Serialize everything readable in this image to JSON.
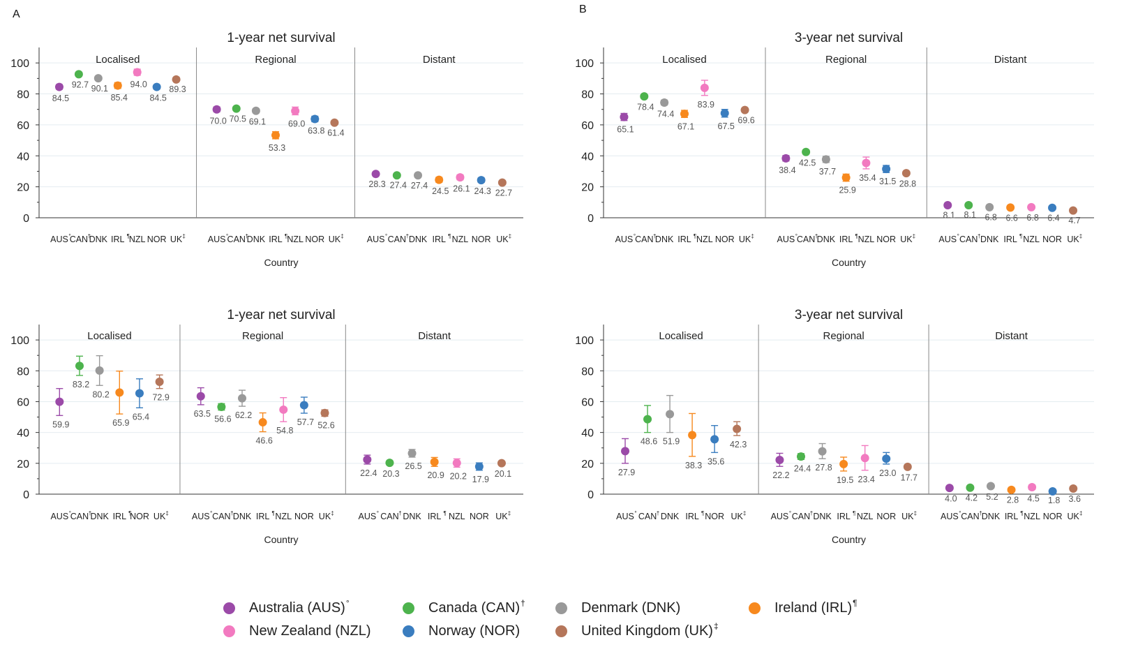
{
  "panels": [
    {
      "label": "A"
    },
    {
      "label": "B"
    }
  ],
  "countries": [
    {
      "code": "AUS",
      "mark": "°",
      "name": "Australia (AUS)",
      "color": "#9b4aa8"
    },
    {
      "code": "CAN",
      "mark": "†",
      "name": "Canada (CAN)",
      "color": "#4db34d"
    },
    {
      "code": "DNK",
      "mark": "",
      "name": "Denmark (DNK)",
      "color": "#999999"
    },
    {
      "code": "IRL",
      "mark": "¶",
      "name": "Ireland (IRL)",
      "color": "#f7891e"
    },
    {
      "code": "NZL",
      "mark": "",
      "name": "New Zealand (NZL)",
      "color": "#f27ac0"
    },
    {
      "code": "NOR",
      "mark": "",
      "name": "Norway (NOR)",
      "color": "#3a7dbf"
    },
    {
      "code": "UK",
      "mark": "‡",
      "name": "United Kingdom (UK)",
      "color": "#b5765a"
    }
  ],
  "chart_data": [
    {
      "type": "scatter",
      "title": "1-year net survival",
      "xlabel": "Country",
      "ylabel": "",
      "ylim": [
        0,
        110
      ],
      "yticks": [
        0,
        20,
        40,
        60,
        80,
        100
      ],
      "grid": true,
      "groups": [
        "Localised",
        "Regional",
        "Distant"
      ],
      "categories": [
        "AUS",
        "CAN",
        "DNK",
        "IRL",
        "NZL",
        "NOR",
        "UK"
      ],
      "values": [
        [
          84.5,
          92.7,
          90.1,
          85.4,
          94.0,
          84.5,
          89.3
        ],
        [
          70.0,
          70.5,
          69.1,
          53.3,
          69.0,
          63.8,
          61.4
        ],
        [
          28.3,
          27.4,
          27.4,
          24.5,
          26.1,
          24.3,
          22.7
        ]
      ],
      "ci_lower": [
        [
          83.0,
          91.8,
          89.3,
          83.5,
          92.0,
          83.2,
          88.8
        ],
        [
          68.4,
          69.7,
          67.8,
          51.0,
          66.5,
          62.0,
          60.7
        ],
        [
          27.6,
          26.8,
          26.6,
          22.9,
          24.5,
          22.9,
          21.8
        ]
      ],
      "ci_upper": [
        [
          86.0,
          93.5,
          90.9,
          87.3,
          96.0,
          85.8,
          89.8
        ],
        [
          71.6,
          71.3,
          70.4,
          55.6,
          71.5,
          65.6,
          62.1
        ],
        [
          29.0,
          28.0,
          28.2,
          26.1,
          27.7,
          25.7,
          23.6
        ]
      ]
    },
    {
      "type": "scatter",
      "title": "3-year net survival",
      "xlabel": "Country",
      "ylabel": "",
      "ylim": [
        0,
        110
      ],
      "yticks": [
        0,
        20,
        40,
        60,
        80,
        100
      ],
      "grid": true,
      "groups": [
        "Localised",
        "Regional",
        "Distant"
      ],
      "categories": [
        "AUS",
        "CAN",
        "DNK",
        "IRL",
        "NZL",
        "NOR",
        "UK"
      ],
      "values": [
        [
          65.1,
          78.4,
          74.4,
          67.1,
          83.9,
          67.5,
          69.6
        ],
        [
          38.4,
          42.5,
          37.7,
          25.9,
          35.4,
          31.5,
          28.8
        ],
        [
          8.1,
          8.1,
          6.8,
          6.6,
          6.8,
          6.4,
          4.7
        ]
      ],
      "ci_lower": [
        [
          62.8,
          77.3,
          72.8,
          64.8,
          79.0,
          65.0,
          68.7
        ],
        [
          36.6,
          41.2,
          35.7,
          23.6,
          31.6,
          29.2,
          27.8
        ],
        [
          7.5,
          7.6,
          6.1,
          5.6,
          5.8,
          5.6,
          4.0
        ]
      ],
      "ci_upper": [
        [
          67.4,
          79.5,
          76.0,
          69.4,
          88.8,
          70.0,
          70.5
        ],
        [
          40.2,
          43.8,
          39.7,
          28.2,
          39.2,
          33.8,
          29.8
        ],
        [
          8.7,
          8.6,
          7.5,
          7.6,
          7.8,
          7.2,
          5.4
        ]
      ]
    },
    {
      "type": "scatter",
      "title": "1-year net survival",
      "xlabel": "Country",
      "ylabel": "",
      "ylim": [
        0,
        110
      ],
      "yticks": [
        0,
        20,
        40,
        60,
        80,
        100
      ],
      "grid": true,
      "groups": [
        "Localised",
        "Regional",
        "Distant"
      ],
      "categories": [
        "AUS",
        "CAN",
        "DNK",
        "IRL",
        "NOR",
        "UK"
      ],
      "categories_per_group": [
        [
          "AUS",
          "CAN",
          "DNK",
          "IRL",
          "NOR",
          "UK"
        ],
        [
          "AUS",
          "CAN",
          "DNK",
          "IRL",
          "NZL",
          "NOR",
          "UK"
        ],
        [
          "AUS",
          "CAN",
          "DNK",
          "IRL",
          "NZL",
          "NOR",
          "UK"
        ]
      ],
      "values": [
        [
          59.9,
          83.2,
          80.2,
          65.9,
          65.4,
          72.9
        ],
        [
          63.5,
          56.6,
          62.2,
          46.6,
          54.8,
          57.7,
          52.6
        ],
        [
          22.4,
          20.3,
          26.5,
          20.9,
          20.2,
          17.9,
          20.1
        ]
      ],
      "ci_lower": [
        [
          51.0,
          77.0,
          70.5,
          52.0,
          56.0,
          68.5
        ],
        [
          58.0,
          54.5,
          57.0,
          40.5,
          47.0,
          52.5,
          50.5
        ],
        [
          19.5,
          19.0,
          24.0,
          18.0,
          17.5,
          15.5,
          19.0
        ]
      ],
      "ci_upper": [
        [
          68.5,
          89.5,
          89.8,
          79.8,
          74.8,
          77.3
        ],
        [
          69.0,
          58.7,
          67.4,
          52.7,
          62.6,
          62.9,
          54.7
        ],
        [
          25.3,
          21.6,
          29.0,
          23.8,
          22.9,
          20.3,
          21.2
        ]
      ]
    },
    {
      "type": "scatter",
      "title": "3-year net survival",
      "xlabel": "Country",
      "ylabel": "",
      "ylim": [
        0,
        110
      ],
      "yticks": [
        0,
        20,
        40,
        60,
        80,
        100
      ],
      "grid": true,
      "groups": [
        "Localised",
        "Regional",
        "Distant"
      ],
      "categories": [
        "AUS",
        "CAN",
        "DNK",
        "IRL",
        "NOR",
        "UK"
      ],
      "categories_per_group": [
        [
          "AUS",
          "CAN",
          "DNK",
          "IRL",
          "NOR",
          "UK"
        ],
        [
          "AUS",
          "CAN",
          "DNK",
          "IRL",
          "NZL",
          "NOR",
          "UK"
        ],
        [
          "AUS",
          "CAN",
          "DNK",
          "IRL",
          "NZL",
          "NOR",
          "UK"
        ]
      ],
      "values": [
        [
          27.9,
          48.6,
          51.9,
          38.3,
          35.6,
          42.3
        ],
        [
          22.2,
          24.4,
          27.8,
          19.5,
          23.4,
          23.0,
          17.7
        ],
        [
          4.0,
          4.2,
          5.2,
          2.8,
          4.5,
          1.8,
          3.6
        ]
      ],
      "ci_lower": [
        [
          20.0,
          40.0,
          40.0,
          24.5,
          27.0,
          38.0
        ],
        [
          18.0,
          22.5,
          23.0,
          15.0,
          15.5,
          19.5,
          16.5
        ],
        [
          3.0,
          3.5,
          4.0,
          2.0,
          3.0,
          1.0,
          2.8
        ]
      ],
      "ci_upper": [
        [
          36.0,
          57.5,
          64.0,
          52.3,
          44.5,
          47.0
        ],
        [
          26.5,
          26.3,
          32.8,
          24.0,
          31.5,
          27.0,
          18.9
        ],
        [
          5.0,
          4.9,
          6.4,
          3.6,
          6.0,
          2.6,
          4.4
        ]
      ]
    }
  ]
}
